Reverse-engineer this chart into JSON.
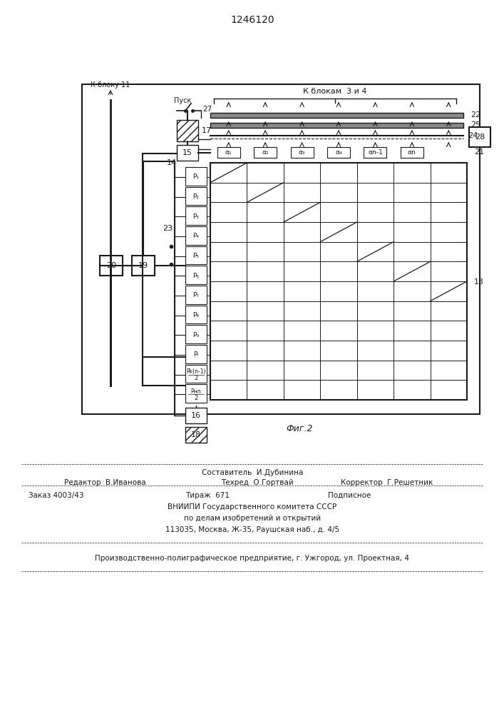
{
  "title": "1246120",
  "fig_caption": "Фиг.2",
  "line_color": "#1a1a1a",
  "label_k_bloku11": "К блоку 11",
  "label_pusk": "Пуск",
  "label_k_blokam34": "К блокам  3 и 4",
  "footer_line1": "Составитель  И.Дубинина",
  "footer_line2_left": "Редактор  В.Иванова",
  "footer_line2_mid": "Техред  О.Гортвай",
  "footer_line2_right": "Корректор  Г.Решетник",
  "footer_line3_left": "Заказ 4003/43",
  "footer_line3_mid": "Тираж  671",
  "footer_line3_right": "Подписное",
  "footer_line4": "ВНИИПИ Государственного комитета СССР",
  "footer_line5": "по делам изобретений и открытий",
  "footer_line6": "113035, Москва, Ж-35, Раушская наб., д. 4/5",
  "footer_line7": "Производственно-полиграфическое предприятие, г. Ужгород, ул. Проектная, 4"
}
